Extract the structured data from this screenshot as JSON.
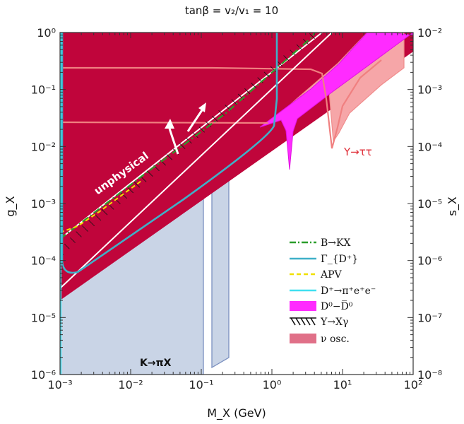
{
  "chart_data": {
    "type": "area",
    "title": "tanβ = v₂/v₁ = 10",
    "xlabel": "M_X (GeV)",
    "ylabel": "g_X",
    "y2label": "s_X",
    "xscale": "log",
    "yscale": "log",
    "xlim": [
      0.001,
      100
    ],
    "ylim": [
      1e-06,
      1
    ],
    "y2lim": [
      1e-08,
      0.01
    ],
    "x_ticks": [
      "10⁻³",
      "10⁻²",
      "10⁻¹",
      "10⁰",
      "10¹",
      "10²"
    ],
    "y_ticks": [
      "10⁻⁶",
      "10⁻⁵",
      "10⁻⁴",
      "10⁻³",
      "10⁻²",
      "10⁻¹",
      "10⁰"
    ],
    "y2_ticks": [
      "10⁻⁸",
      "10⁻⁷",
      "10⁻⁶",
      "10⁻⁵",
      "10⁻⁴",
      "10⁻³",
      "10⁻²"
    ],
    "grid": false,
    "legend_position": "bottom-right",
    "colors": {
      "unphysical": "#c0053b",
      "kpix": "#c9d4e6",
      "kpix_edge": "#7a8fbf",
      "d0mix": "#ff2bff",
      "nu_osc": "#f4a0a0",
      "upsilon_tautau": "#f08080",
      "gamma_d": "#3fb0c8",
      "dpi_ee": "#40e0f0",
      "bkx": "#2a9d2a",
      "apv": "#f0e000"
    },
    "series": [
      {
        "name": "B→KX",
        "style": "dash-dot green",
        "x": [
          0.001,
          0.01,
          0.1,
          1,
          4.5
        ],
        "y": [
          0.00023,
          0.0022,
          0.022,
          0.22,
          1.0
        ]
      },
      {
        "name": "Γ_{D⁺}",
        "style": "solid teal",
        "x": [
          0.00103,
          0.00107,
          0.0013,
          0.003,
          0.01,
          0.06,
          0.15,
          0.3,
          0.2,
          0.2,
          0.19
        ],
        "y": [
          1.0,
          0.0002,
          0.00012,
          0.00011,
          0.00016,
          0.00036,
          0.0005,
          0.0008,
          0.004,
          0.05,
          1.0
        ]
      },
      {
        "name": "APV",
        "style": "dashed yellow",
        "x": [
          0.001,
          0.0015,
          0.002,
          0.004
        ],
        "y": [
          0.00033,
          0.00038,
          0.00048,
          0.0008
        ]
      },
      {
        "name": "D⁺→π⁺e⁺e⁻",
        "style": "solid cyan",
        "x": [
          0.001,
          0.001
        ],
        "y": [
          1e-06,
          1.0
        ]
      },
      {
        "name": "D⁰−D̅⁰",
        "style": "filled magenta",
        "x": [
          0.5,
          1.5,
          1.9,
          2.3,
          8,
          80,
          80,
          5,
          1.0
        ],
        "y": [
          0.007,
          0.01,
          0.00042,
          0.01,
          0.12,
          1.0,
          0.5,
          0.1,
          0.012
        ]
      },
      {
        "name": "Υ→Xγ",
        "style": "hatched",
        "x": [
          0.0011,
          0.01,
          0.1,
          1,
          4.5
        ],
        "y": [
          0.00022,
          0.002,
          0.02,
          0.2,
          1.0
        ]
      },
      {
        "name": "ν osc.",
        "style": "filled pink",
        "x": [
          1.0,
          2,
          5,
          7,
          10,
          20,
          80,
          80,
          20,
          2
        ],
        "y": [
          0.012,
          0.025,
          0.08,
          0.0075,
          0.03,
          0.05,
          0.5,
          1.0,
          0.7,
          0.05
        ]
      }
    ],
    "annotations": [
      {
        "text": "unphysical",
        "x": 0.0014,
        "y": 0.0022
      },
      {
        "text": "Υ→ττ",
        "x": 7.5,
        "y": 0.0075
      },
      {
        "text": "K→πX",
        "x": 0.02,
        "y": 1.5e-06
      }
    ]
  }
}
